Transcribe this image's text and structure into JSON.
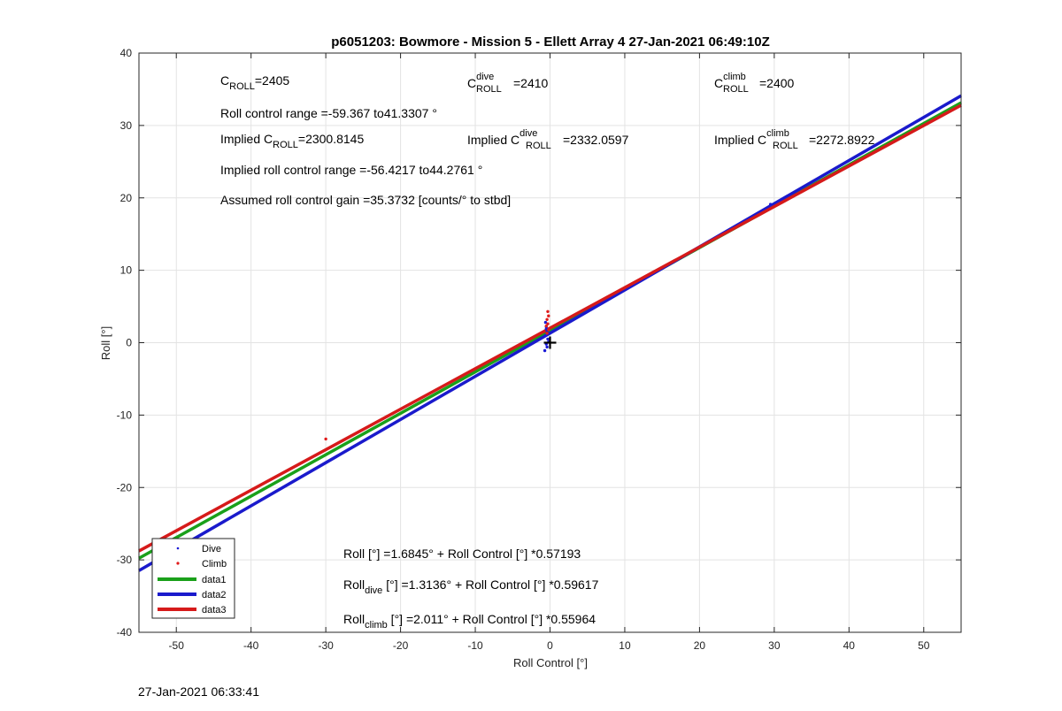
{
  "chart_data": {
    "type": "scatter",
    "title": "p6051203: Bowmore - Mission 5 - Ellett Array 4 27-Jan-2021 06:49:10Z",
    "xlabel": "Roll Control [°]",
    "ylabel": "Roll [°]",
    "xlim": [
      -55,
      55
    ],
    "ylim": [
      -40,
      40
    ],
    "xticks": [
      -50,
      -40,
      -30,
      -20,
      -10,
      0,
      10,
      20,
      30,
      40,
      50
    ],
    "yticks": [
      -40,
      -30,
      -20,
      -10,
      0,
      10,
      20,
      30,
      40
    ],
    "grid": true,
    "legend_position": "bottom-left",
    "legend": [
      "Dive",
      "Climb",
      "data1",
      "data2",
      "data3"
    ],
    "series": [
      {
        "name": "Dive",
        "kind": "points",
        "color": "#1a1ad6",
        "x": [
          -0.6,
          -0.5,
          -0.4,
          -0.6,
          -0.3,
          -0.5,
          -0.4,
          -0.7,
          -0.2,
          -0.5,
          29.5
        ],
        "y": [
          2.8,
          2.2,
          1.6,
          1.0,
          0.5,
          -0.2,
          -0.6,
          -1.1,
          0.1,
          1.9,
          19.1
        ]
      },
      {
        "name": "Climb",
        "kind": "points",
        "color": "#e01a1a",
        "x": [
          -0.3,
          -0.2,
          -0.4,
          -0.3,
          -0.5,
          -0.2,
          -0.4,
          -30.0
        ],
        "y": [
          4.3,
          3.7,
          3.2,
          2.6,
          2.3,
          1.8,
          1.3,
          -13.3
        ]
      },
      {
        "name": "data1",
        "kind": "line",
        "color": "#1aa01a",
        "intercept": 1.6845,
        "slope": 0.57193
      },
      {
        "name": "data2",
        "kind": "line",
        "color": "#1a1acc",
        "intercept": 1.3136,
        "slope": 0.59617
      },
      {
        "name": "data3",
        "kind": "line",
        "color": "#d61a1a",
        "intercept": 2.011,
        "slope": 0.55964
      }
    ],
    "marker": {
      "x": 0,
      "y": 0,
      "symbol": "+",
      "color": "#000000"
    }
  },
  "annotations": {
    "c_roll_base": "C",
    "c_roll_sub": "ROLL",
    "c_roll_val": "=2405",
    "c_dive_base": "C",
    "c_dive_sup": "dive",
    "c_dive_sub": "ROLL",
    "c_dive_val": "=2410",
    "c_climb_base": "C",
    "c_climb_sup": "climb",
    "c_climb_sub": "ROLL",
    "c_climb_val": "=2400",
    "range": "Roll control range =-59.367 to41.3307 °",
    "implied_prefix": "Implied C",
    "implied_sub": "ROLL",
    "implied_val": "=2300.8145",
    "implied_dive_prefix": "Implied C",
    "implied_dive_sup": "dive",
    "implied_dive_sub": "ROLL",
    "implied_dive_val": "=2332.0597",
    "implied_climb_prefix": "Implied C",
    "implied_climb_sup": "climb",
    "implied_climb_sub": "ROLL",
    "implied_climb_val": "=2272.8922",
    "implied_range": "Implied roll control range =-56.4217 to44.2761 °",
    "gain": "Assumed roll control gain =35.3732 [counts/° to stbd]",
    "fit_all": "Roll [°] =1.6845° + Roll Control [°] *0.57193",
    "fit_dive_base": "Roll",
    "fit_dive_sub": "dive",
    "fit_dive_rest": " [°] =1.3136° + Roll Control [°] *0.59617",
    "fit_climb_base": "Roll",
    "fit_climb_sub": "climb",
    "fit_climb_rest": " [°] =2.011° + Roll Control [°] *0.55964"
  },
  "footer": {
    "timestamp": "27-Jan-2021 06:33:41"
  }
}
